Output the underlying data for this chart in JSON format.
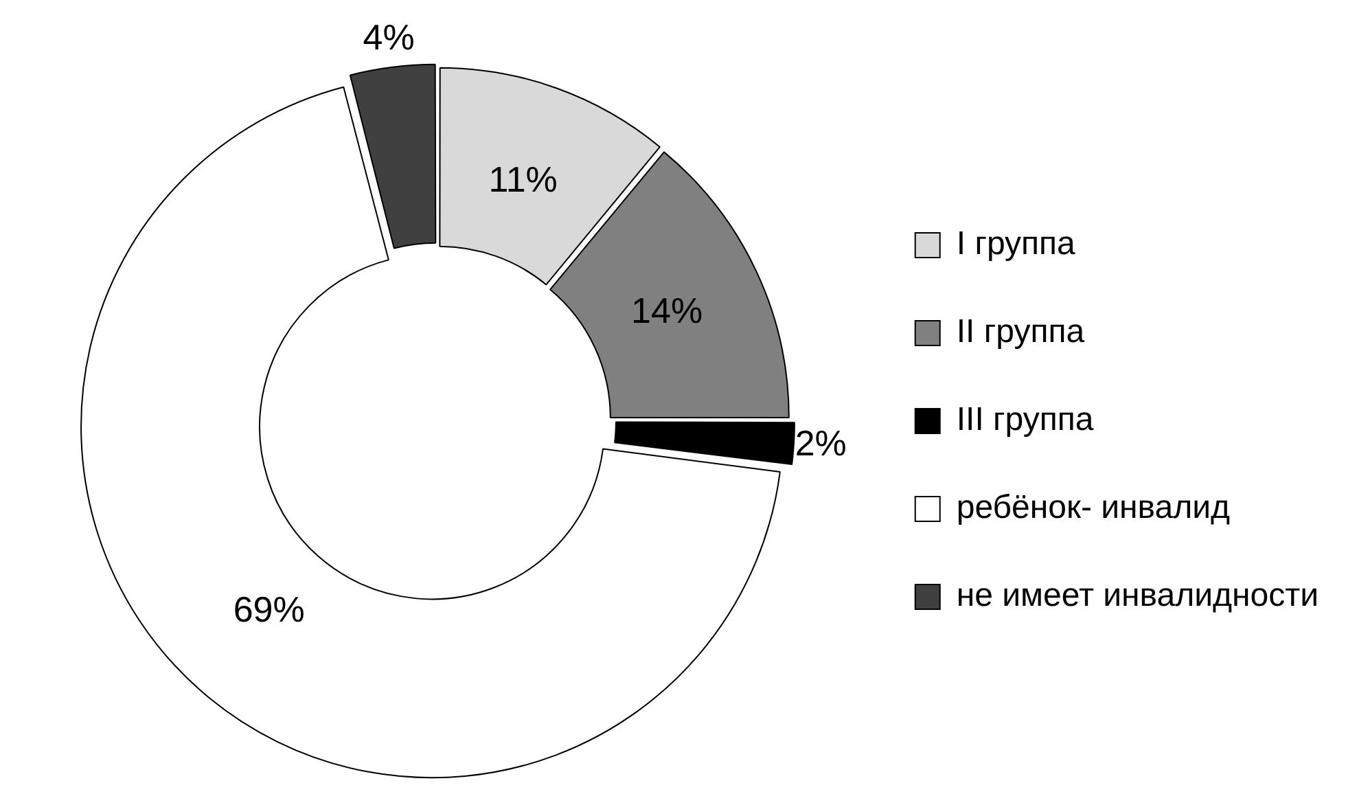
{
  "chart_data": {
    "type": "donut",
    "categories": [
      "I группа",
      "II группа",
      "III группа",
      "ребёнок- инвалид",
      "не имеет инвалидности"
    ],
    "values": [
      11,
      14,
      2,
      69,
      4
    ],
    "colors": [
      "#d9d9d9",
      "#808080",
      "#000000",
      "#ffffff",
      "#404040"
    ],
    "value_labels": [
      "11%",
      "14%",
      "2%",
      "69%",
      "4%"
    ],
    "legend": "right"
  }
}
